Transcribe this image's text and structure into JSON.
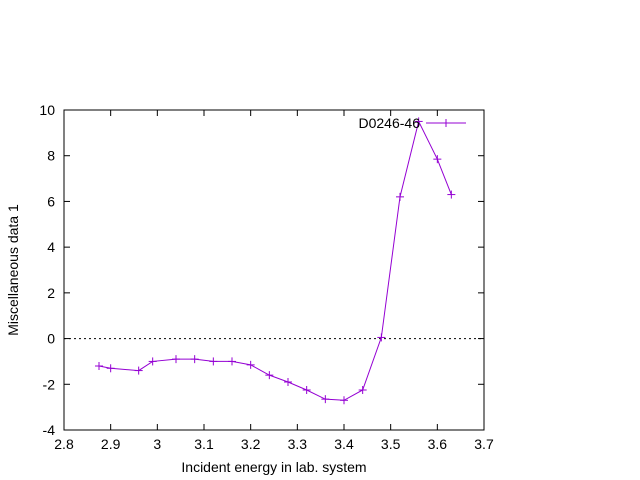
{
  "chart_data": {
    "type": "line",
    "xlabel": "Incident energy in lab. system",
    "ylabel": "Miscellaneous data 1",
    "xlim": [
      2.8,
      3.7
    ],
    "ylim": [
      -4,
      10
    ],
    "xticks": [
      2.8,
      2.9,
      3.0,
      3.1,
      3.2,
      3.3,
      3.4,
      3.5,
      3.6,
      3.7
    ],
    "xtick_labels": [
      "2.8",
      "2.9",
      "3",
      "3.1",
      "3.2",
      "3.3",
      "3.4",
      "3.5",
      "3.6",
      "3.7"
    ],
    "yticks": [
      -4,
      -2,
      0,
      2,
      4,
      6,
      8,
      10
    ],
    "ytick_labels": [
      "-4",
      "-2",
      "0",
      "2",
      "4",
      "6",
      "8",
      "10"
    ],
    "grid": false,
    "zero_line": true,
    "legend_position": "top-right",
    "series": [
      {
        "name": "D0246-46",
        "color": "#9400d3",
        "marker": "plus",
        "x": [
          2.875,
          2.9,
          2.96,
          2.99,
          3.04,
          3.08,
          3.12,
          3.16,
          3.2,
          3.24,
          3.28,
          3.32,
          3.36,
          3.4,
          3.44,
          3.48,
          3.52,
          3.56,
          3.6,
          3.63
        ],
        "y": [
          -1.2,
          -1.3,
          -1.4,
          -1.0,
          -0.9,
          -0.9,
          -1.0,
          -1.0,
          -1.15,
          -1.6,
          -1.9,
          -2.25,
          -2.65,
          -2.7,
          -2.25,
          0.05,
          6.2,
          9.5,
          7.85,
          6.3
        ]
      }
    ]
  }
}
